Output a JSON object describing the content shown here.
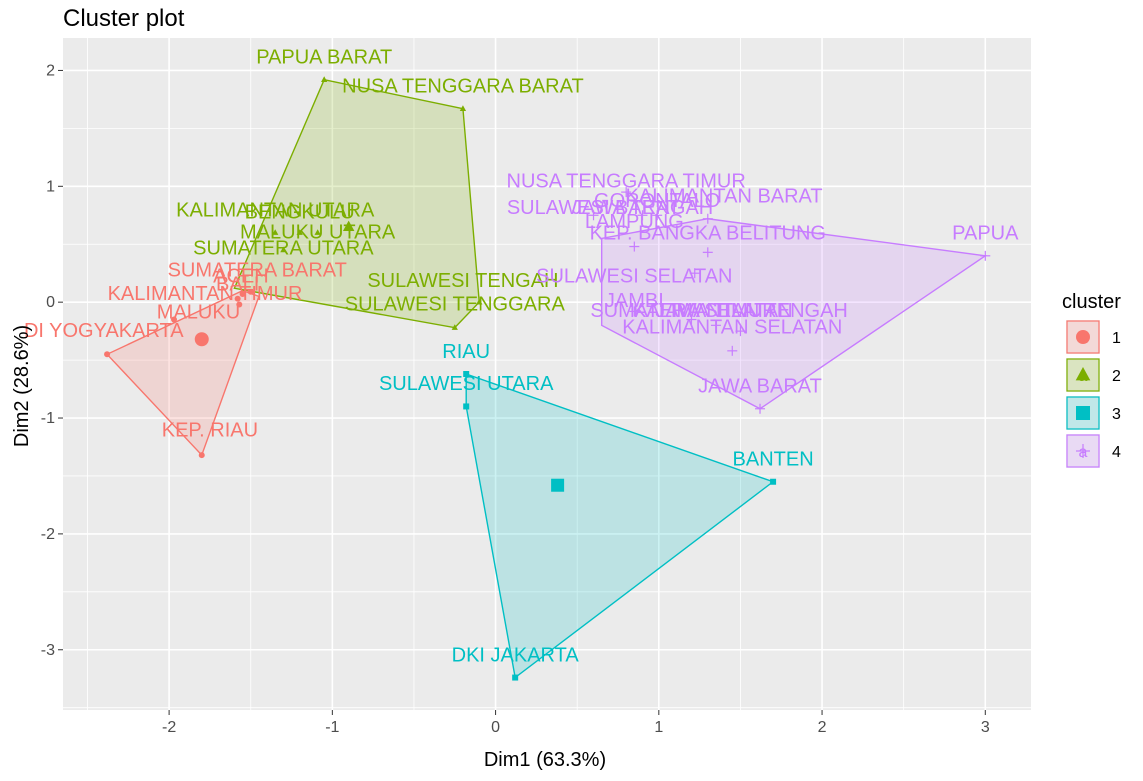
{
  "chart_data": {
    "type": "scatter",
    "title": "Cluster plot",
    "xlabel": "Dim1 (63.3%)",
    "ylabel": "Dim2 (28.6%)",
    "xlim": [
      -2.65,
      3.28
    ],
    "ylim": [
      -3.52,
      2.28
    ],
    "x_ticks": [
      -2,
      -1,
      0,
      1,
      2,
      3
    ],
    "y_ticks": [
      -3,
      -2,
      -1,
      0,
      1,
      2
    ],
    "grid": true,
    "legend_position": "right",
    "legend_title": "cluster",
    "series": [
      {
        "name": "1",
        "color": "#F8766D",
        "shape": "circle",
        "centroid": [
          -1.8,
          -0.32
        ],
        "hull": [
          [
            -2.38,
            -0.45
          ],
          [
            -1.8,
            -1.32
          ],
          [
            -1.45,
            0.05
          ],
          [
            -1.55,
            0.1
          ]
        ],
        "points": [
          {
            "label": "SUMATERA BARAT",
            "x": -1.5,
            "y": 0.09,
            "lx": -1.46,
            "ly": 0.22
          },
          {
            "label": "ACEH",
            "x": -1.55,
            "y": 0.07,
            "lx": -1.56,
            "ly": 0.17
          },
          {
            "label": "BALI",
            "x": -1.58,
            "y": 0.03,
            "lx": -1.58,
            "ly": 0.1
          },
          {
            "label": "KALIMANTAN TIMUR",
            "x": -1.57,
            "y": -0.02,
            "lx": -1.78,
            "ly": 0.02
          },
          {
            "label": "MALUKU",
            "x": -1.97,
            "y": -0.15,
            "lx": -1.82,
            "ly": -0.14
          },
          {
            "label": "DI YOGYAKARTA",
            "x": -2.38,
            "y": -0.45,
            "lx": -2.4,
            "ly": -0.3
          },
          {
            "label": "KEP. RIAU",
            "x": -1.8,
            "y": -1.32,
            "lx": -1.75,
            "ly": -1.16
          }
        ]
      },
      {
        "name": "2",
        "color": "#7CAE00",
        "shape": "triangle",
        "centroid": [
          -0.9,
          0.65
        ],
        "hull": [
          [
            -1.05,
            1.92
          ],
          [
            -0.2,
            1.67
          ],
          [
            -0.1,
            0.0
          ],
          [
            -0.25,
            -0.22
          ],
          [
            -1.6,
            0.12
          ]
        ],
        "points": [
          {
            "label": "PAPUA BARAT",
            "x": -1.05,
            "y": 1.92,
            "lx": -1.05,
            "ly": 2.06
          },
          {
            "label": "NUSA TENGGARA BARAT",
            "x": -0.2,
            "y": 1.67,
            "lx": -0.2,
            "ly": 1.81
          },
          {
            "label": "KALIMANTAN UTARA",
            "x": -1.35,
            "y": 0.6,
            "lx": -1.35,
            "ly": 0.74
          },
          {
            "label": "BENGKULU",
            "x": -1.2,
            "y": 0.6,
            "lx": -1.2,
            "ly": 0.72
          },
          {
            "label": "MALUKU UTARA",
            "x": -1.09,
            "y": 0.6,
            "lx": -1.09,
            "ly": 0.55
          },
          {
            "label": "SUMATERA UTARA",
            "x": -1.3,
            "y": 0.45,
            "lx": -1.3,
            "ly": 0.41
          },
          {
            "label": "SULAWESI TENGAH",
            "x": -0.1,
            "y": 0.0,
            "lx": -0.2,
            "ly": 0.13
          },
          {
            "label": "SULAWESI TENGGARA",
            "x": -0.25,
            "y": -0.22,
            "lx": -0.25,
            "ly": -0.07
          }
        ]
      },
      {
        "name": "3",
        "color": "#00BFC4",
        "shape": "square",
        "centroid": [
          0.38,
          -1.58
        ],
        "hull": [
          [
            -0.18,
            -0.62
          ],
          [
            1.7,
            -1.55
          ],
          [
            0.12,
            -3.24
          ],
          [
            -0.18,
            -0.9
          ]
        ],
        "points": [
          {
            "label": "RIAU",
            "x": -0.18,
            "y": -0.62,
            "lx": -0.18,
            "ly": -0.48
          },
          {
            "label": "SULAWESI UTARA",
            "x": -0.18,
            "y": -0.9,
            "lx": -0.18,
            "ly": -0.76
          },
          {
            "label": "BANTEN",
            "x": 1.7,
            "y": -1.55,
            "lx": 1.7,
            "ly": -1.41
          },
          {
            "label": "DKI JAKARTA",
            "x": 0.12,
            "y": -3.24,
            "lx": 0.12,
            "ly": -3.1
          }
        ]
      },
      {
        "name": "4",
        "color": "#C77CFF",
        "shape": "plus",
        "centroid": null,
        "hull": [
          [
            0.65,
            0.55
          ],
          [
            1.3,
            0.72
          ],
          [
            3.0,
            0.4
          ],
          [
            1.62,
            -0.92
          ],
          [
            0.65,
            -0.2
          ]
        ],
        "points": [
          {
            "label": "NUSA TENGGARA TIMUR",
            "x": 0.8,
            "y": 0.95,
            "lx": 0.8,
            "ly": 0.99
          },
          {
            "label": "GORONTALO",
            "x": 0.99,
            "y": 0.75,
            "lx": 0.99,
            "ly": 0.82
          },
          {
            "label": "KALIMANTAN BARAT",
            "x": 1.3,
            "y": 0.72,
            "lx": 1.4,
            "ly": 0.86
          },
          {
            "label": "SULAWESI BARAT",
            "x": 0.6,
            "y": 0.75,
            "lx": 0.6,
            "ly": 0.76
          },
          {
            "label": "JAWA TENGAH",
            "x": 0.9,
            "y": 0.75,
            "lx": 0.9,
            "ly": 0.76
          },
          {
            "label": "LAMPUNG",
            "x": 0.85,
            "y": 0.48,
            "lx": 0.85,
            "ly": 0.64
          },
          {
            "label": "KEP. BANGKA BELITUNG",
            "x": 1.3,
            "y": 0.43,
            "lx": 1.3,
            "ly": 0.54
          },
          {
            "label": "PAPUA",
            "x": 3.0,
            "y": 0.4,
            "lx": 3.0,
            "ly": 0.54
          },
          {
            "label": "SULAWESI SELATAN",
            "x": 1.22,
            "y": 0.25,
            "lx": 0.85,
            "ly": 0.17
          },
          {
            "label": "JAMBI",
            "x": 0.85,
            "y": -0.08,
            "lx": 0.85,
            "ly": -0.04
          },
          {
            "label": "SUMATERA SELATAN",
            "x": 1.2,
            "y": -0.15,
            "lx": 1.2,
            "ly": -0.13
          },
          {
            "label": "JAWA TIMUR",
            "x": 1.35,
            "y": -0.2,
            "lx": 1.35,
            "ly": -0.13
          },
          {
            "label": "KALIMANTAN TENGAH",
            "x": 1.5,
            "y": -0.25,
            "lx": 1.5,
            "ly": -0.13
          },
          {
            "label": "KALIMANTAN SELATAN",
            "x": 1.45,
            "y": -0.42,
            "lx": 1.45,
            "ly": -0.27
          },
          {
            "label": "JAWA BARAT",
            "x": 1.62,
            "y": -0.92,
            "lx": 1.62,
            "ly": -0.78
          }
        ]
      }
    ]
  }
}
